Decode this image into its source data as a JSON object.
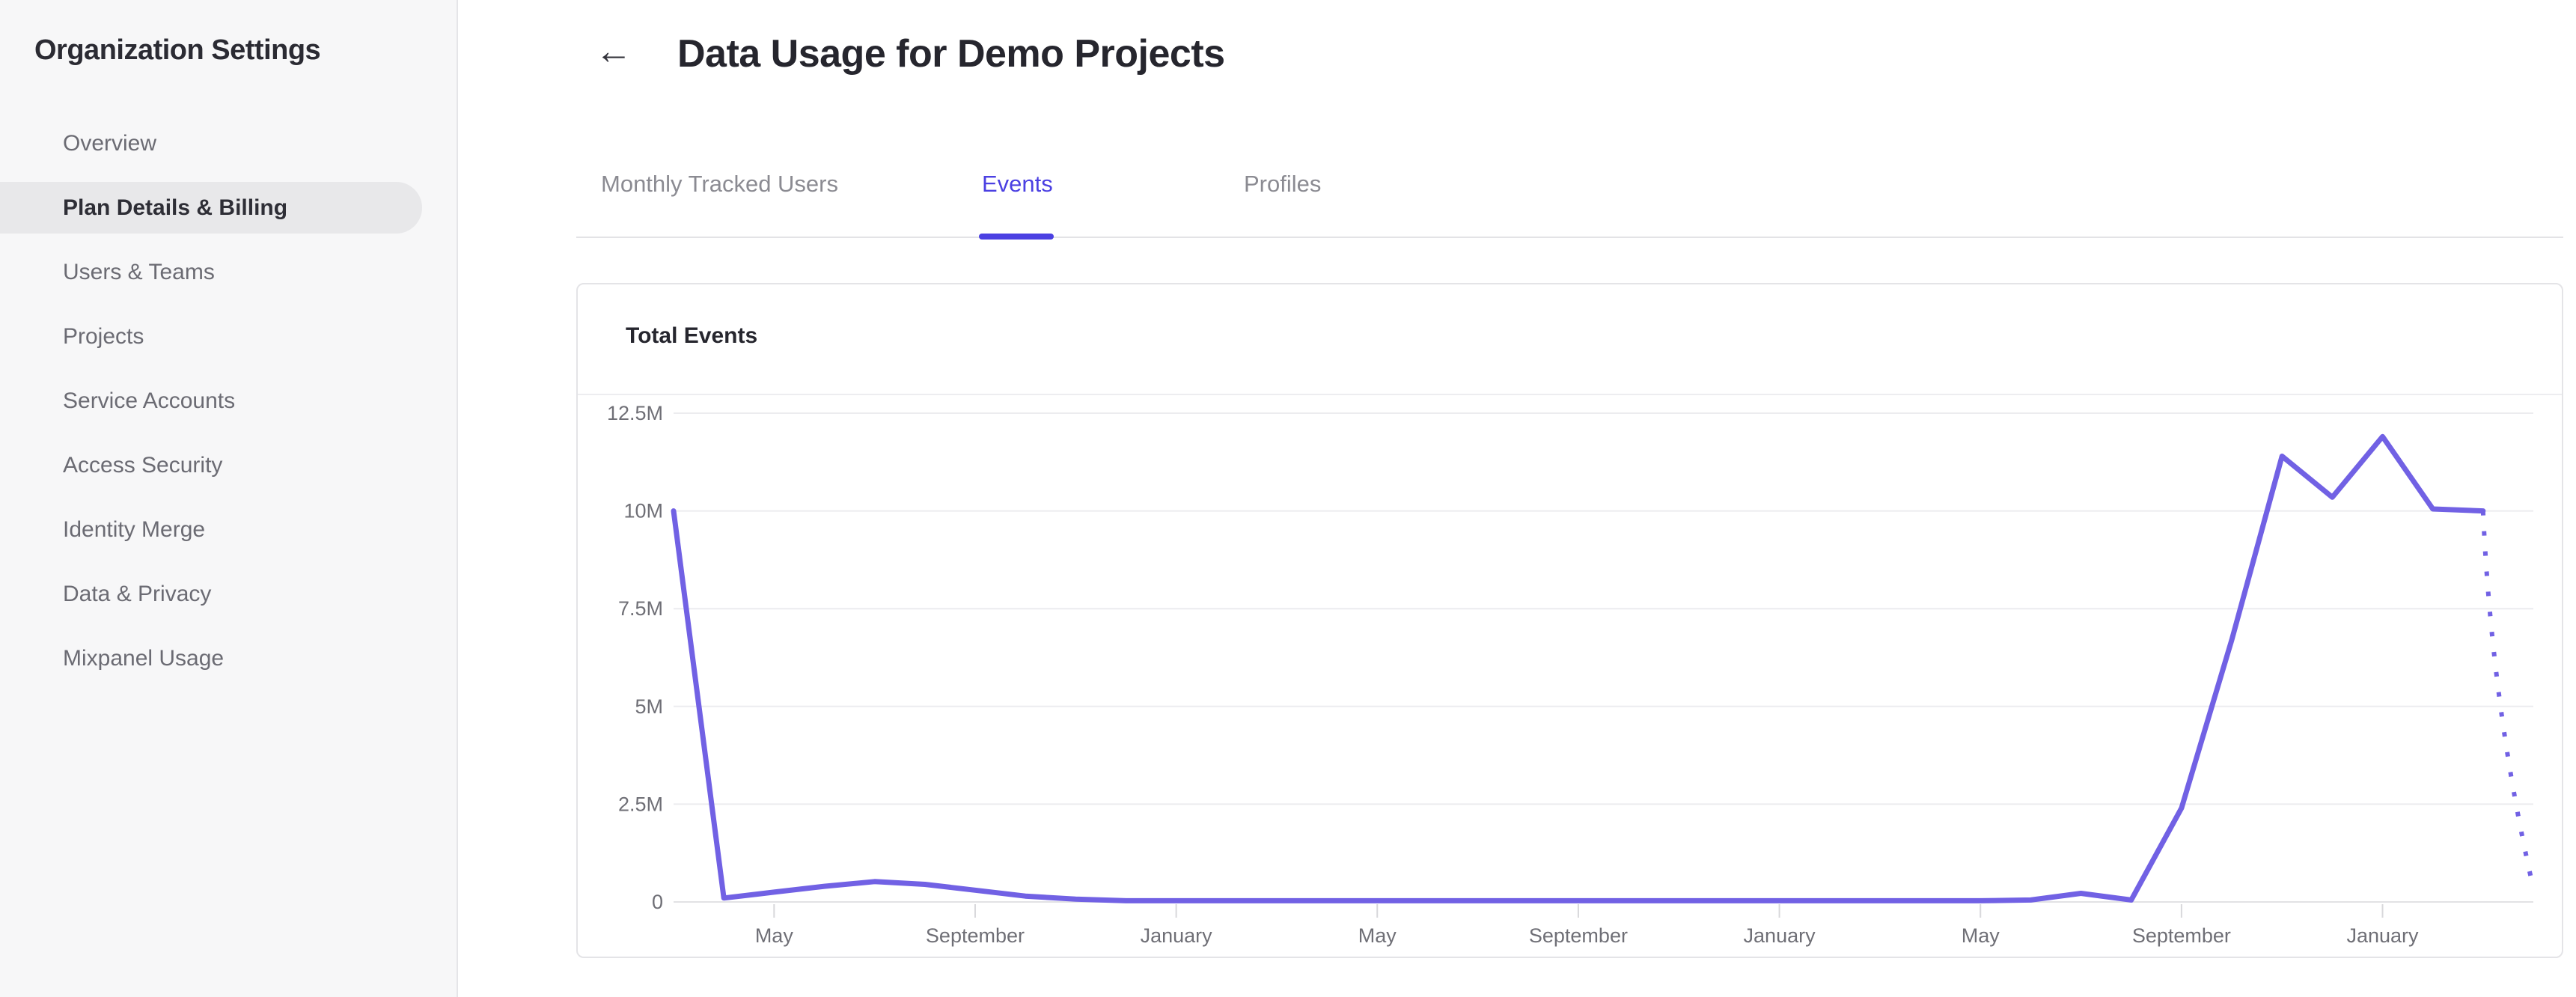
{
  "sidebar": {
    "title": "Organization Settings",
    "items": [
      {
        "label": "Overview",
        "active": false
      },
      {
        "label": "Plan Details & Billing",
        "active": true
      },
      {
        "label": "Users & Teams",
        "active": false
      },
      {
        "label": "Projects",
        "active": false
      },
      {
        "label": "Service Accounts",
        "active": false
      },
      {
        "label": "Access Security",
        "active": false
      },
      {
        "label": "Identity Merge",
        "active": false
      },
      {
        "label": "Data & Privacy",
        "active": false
      },
      {
        "label": "Mixpanel Usage",
        "active": false
      }
    ]
  },
  "header": {
    "back_icon": "←",
    "title": "Data Usage for Demo Projects"
  },
  "tabs": [
    {
      "label": "Monthly Tracked Users",
      "active": false
    },
    {
      "label": "Events",
      "active": true
    },
    {
      "label": "Profiles",
      "active": false
    }
  ],
  "colors": {
    "accent": "#4b40e2",
    "line": "#7161e4",
    "gridline": "#ececef",
    "axis_line": "#e2e2e5",
    "tick": "#d8d8db"
  },
  "chart_data": {
    "type": "line",
    "title": "Total Events",
    "ylabel": "",
    "xlabel": "",
    "ylim": [
      0,
      12.5
    ],
    "grid": true,
    "legend": "none",
    "y_ticks": [
      {
        "label": "12.5M",
        "value": 12.5
      },
      {
        "label": "10M",
        "value": 10
      },
      {
        "label": "7.5M",
        "value": 7.5
      },
      {
        "label": "5M",
        "value": 5
      },
      {
        "label": "2.5M",
        "value": 2.5
      },
      {
        "label": "0",
        "value": 0
      }
    ],
    "x_tick_labels": [
      {
        "index": 2,
        "label": "May"
      },
      {
        "index": 6,
        "label": "September"
      },
      {
        "index": 10,
        "label": "January"
      },
      {
        "index": 14,
        "label": "May"
      },
      {
        "index": 18,
        "label": "September"
      },
      {
        "index": 22,
        "label": "January"
      },
      {
        "index": 26,
        "label": "May"
      },
      {
        "index": 30,
        "label": "September"
      },
      {
        "index": 34,
        "label": "January"
      }
    ],
    "series": [
      {
        "name": "Total Events",
        "unit": "millions",
        "values": [
          10,
          0.1,
          0.25,
          0.4,
          0.52,
          0.45,
          0.3,
          0.15,
          0.07,
          0.03,
          0.03,
          0.03,
          0.03,
          0.03,
          0.03,
          0.03,
          0.03,
          0.03,
          0.03,
          0.03,
          0.03,
          0.03,
          0.03,
          0.03,
          0.03,
          0.03,
          0.03,
          0.05,
          0.22,
          0.05,
          2.4,
          6.7,
          11.4,
          10.35,
          11.9,
          10.05,
          10.0
        ]
      }
    ],
    "projection": {
      "style": "dotted",
      "end_value": 0.35
    }
  }
}
